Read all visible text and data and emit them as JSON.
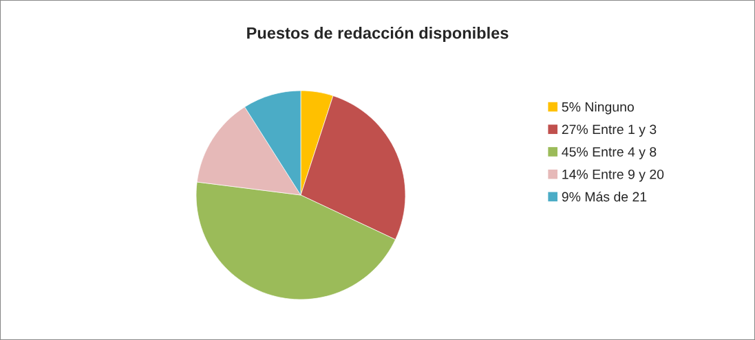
{
  "chart_data": {
    "type": "pie",
    "title": "Puestos de redacción disponibles",
    "categories": [
      "5% Ninguno",
      "27% Entre 1 y 3",
      "45% Entre 4 y 8",
      "14% Entre 9 y 20",
      "9% Más de 21"
    ],
    "values": [
      5,
      27,
      45,
      14,
      9
    ],
    "colors": [
      "#ffc000",
      "#c0504d",
      "#9bbb59",
      "#e6b9b8",
      "#4bacc6"
    ],
    "legend": "right"
  }
}
